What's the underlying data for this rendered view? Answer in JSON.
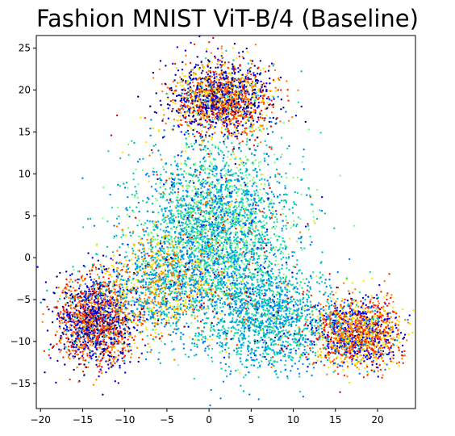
{
  "chart_data": {
    "type": "scatter",
    "title": "Fashion MNIST ViT-B/4 (Baseline)",
    "xlabel": "",
    "ylabel": "",
    "xlim": [
      -20.5,
      24.5
    ],
    "ylim": [
      -18,
      26.5
    ],
    "xticks": [
      -20,
      -15,
      -10,
      -5,
      0,
      5,
      10,
      15,
      20
    ],
    "yticks": [
      -15,
      -10,
      -5,
      0,
      5,
      10,
      15,
      20,
      25
    ],
    "xtick_labels": [
      "−20",
      "−15",
      "−10",
      "−5",
      "0",
      "5",
      "10",
      "15",
      "20"
    ],
    "ytick_labels": [
      "−15",
      "−10",
      "−5",
      "0",
      "5",
      "10",
      "15",
      "20",
      "25"
    ],
    "grid": false,
    "legend": "none",
    "colormap": "jet",
    "point_color_values": [
      "#00007f",
      "#0000ff",
      "#007fff",
      "#00bfbf",
      "#19d9b0",
      "#7fff7f",
      "#ffe600",
      "#ff8000",
      "#ff2000",
      "#d40000"
    ],
    "clusters": [
      {
        "center": [
          1.5,
          19.0
        ],
        "spread": [
          3.0,
          2.3
        ],
        "approx_count": 1800,
        "dominant_colors": [
          "#0000ff",
          "#ff2000",
          "#ff8000",
          "#ffe600",
          "#00007f"
        ]
      },
      {
        "center": [
          -13.5,
          -7.5
        ],
        "spread": [
          2.3,
          2.6
        ],
        "approx_count": 1600,
        "dominant_colors": [
          "#0000ff",
          "#ff2000",
          "#ff8000",
          "#00007f"
        ]
      },
      {
        "center": [
          17.5,
          -9.0
        ],
        "spread": [
          2.6,
          2.0
        ],
        "approx_count": 1500,
        "dominant_colors": [
          "#0000ff",
          "#ff8000",
          "#ff2000",
          "#ffe600"
        ]
      },
      {
        "center": [
          0.5,
          3.0
        ],
        "spread": [
          4.8,
          5.2
        ],
        "approx_count": 3200,
        "dominant_colors": [
          "#00bfbf",
          "#007fff",
          "#19d9b0",
          "#7fff7f"
        ]
      },
      {
        "center": [
          7.0,
          -7.5
        ],
        "spread": [
          4.0,
          3.0
        ],
        "approx_count": 1400,
        "dominant_colors": [
          "#00bfbf",
          "#007fff",
          "#19d9b0"
        ]
      },
      {
        "center": [
          -6.0,
          -3.5
        ],
        "spread": [
          3.5,
          3.0
        ],
        "approx_count": 1100,
        "dominant_colors": [
          "#00bfbf",
          "#ff8000",
          "#007fff",
          "#ffe600"
        ]
      }
    ]
  }
}
